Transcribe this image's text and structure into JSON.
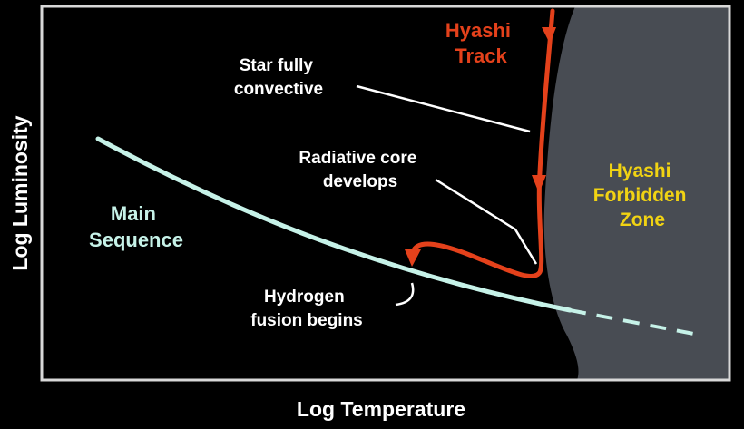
{
  "axes": {
    "x_label": "Log  Temperature",
    "y_label": "Log Luminosity"
  },
  "labels": {
    "hyashi_track": [
      "Hyashi",
      "Track"
    ],
    "star_fully_convective": [
      "Star fully",
      "convective"
    ],
    "radiative_core": [
      "Radiative core",
      "develops"
    ],
    "main_sequence": [
      "Main",
      "Sequence"
    ],
    "hydrogen_fusion": [
      "Hydrogen",
      "fusion begins"
    ],
    "forbidden_zone": [
      "Hyashi",
      "Forbidden",
      "Zone"
    ]
  },
  "colors": {
    "background": "#000000",
    "frame": "#d8d8d8",
    "forbidden_zone": "#484c53",
    "track": "#e4411b",
    "main_sequence": "#c6f2e8",
    "label_white": "#ffffff",
    "label_red": "#e4411b",
    "label_yellow": "#f1d313",
    "main_sequence_label": "#c6f2e8"
  }
}
